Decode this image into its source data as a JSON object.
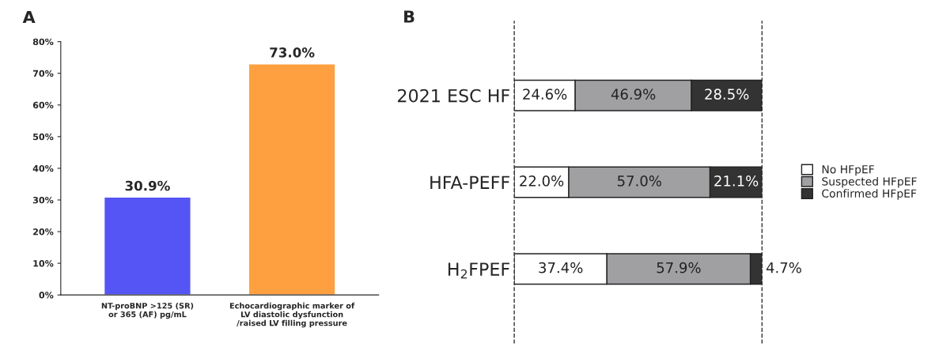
{
  "chart_data": [
    {
      "type": "bar",
      "title": "A",
      "categories": [
        "NT-proBNP >125 (SR)\nor 365 (AF) pg/mL",
        "Echocardiographic marker of\nLV diastolic dysfunction\n/raised LV filling pressure"
      ],
      "values": [
        30.9,
        73.0
      ],
      "colors": [
        "#5555f5",
        "#ffa040"
      ],
      "value_labels": [
        "30.9%",
        "73.0%"
      ],
      "ylim": [
        0,
        80
      ],
      "yticks": [
        {
          "value": 0,
          "label": "0%"
        },
        {
          "value": 10,
          "label": "10%"
        },
        {
          "value": 20,
          "label": "20%"
        },
        {
          "value": 30,
          "label": "30%"
        },
        {
          "value": 40,
          "label": "40%"
        },
        {
          "value": 50,
          "label": "50%"
        },
        {
          "value": 60,
          "label": "60%"
        },
        {
          "value": 70,
          "label": "70%"
        },
        {
          "value": 80,
          "label": "80%"
        }
      ],
      "grid": false,
      "legend": false
    },
    {
      "type": "bar",
      "title": "B",
      "orientation": "horizontal",
      "stacked": true,
      "categories": [
        "2021 ESC HF",
        "HFA-PEFF",
        "H$_{2}$FPEF"
      ],
      "series": [
        {
          "name": "No HFpEF",
          "color": "#ffffff",
          "values": [
            24.6,
            22.0,
            37.4
          ],
          "value_labels": [
            "24.6%",
            "22.0%",
            "37.4%"
          ]
        },
        {
          "name": "Suspected HFpEF",
          "color": "#a0a0a3",
          "values": [
            46.9,
            57.0,
            57.9
          ],
          "value_labels": [
            "46.9%",
            "57.0%",
            "57.9%"
          ]
        },
        {
          "name": "Confirmed HFpEF",
          "color": "#333333",
          "values": [
            28.5,
            21.1,
            4.7
          ],
          "value_labels": [
            "28.5%",
            "21.1%",
            "4.7%"
          ]
        }
      ],
      "xlim": [
        0,
        100
      ],
      "tick_labels": "y",
      "grid": false,
      "legend": "right",
      "ref_lines": [
        {
          "axis": "x",
          "value": 0,
          "color": "#333333",
          "line_style": "dashed"
        },
        {
          "axis": "x",
          "value": 100,
          "color": "#333333",
          "line_style": "dashed"
        }
      ]
    }
  ]
}
